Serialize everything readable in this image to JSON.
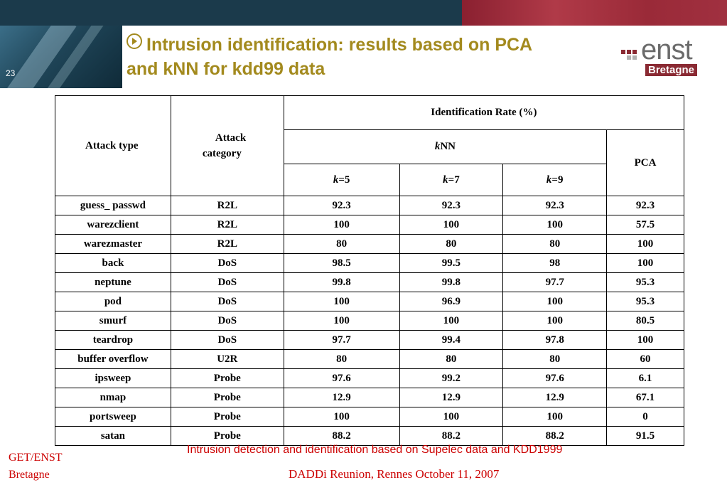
{
  "slide_number": "23",
  "title_line1": "Intrusion identification: results based on PCA",
  "title_line2": "and kNN for kdd99 data",
  "logo": {
    "word": "enst",
    "sub": "Bretagne"
  },
  "table": {
    "header_attack_type": "Attack type",
    "header_attack_category_1": "Attack",
    "header_attack_category_2": "category",
    "header_identification_rate": "Identification Rate (%)",
    "header_knn_italic": "k",
    "header_knn_rest": "NN",
    "header_pca": "PCA",
    "k_values": [
      "=5",
      "=7",
      "=9"
    ],
    "k_label": "k",
    "rows": [
      {
        "type": "guess_ passwd",
        "category": "R2L",
        "k5": "92.3",
        "k7": "92.3",
        "k9": "92.3",
        "pca": "92.3"
      },
      {
        "type": "warezclient",
        "category": "R2L",
        "k5": "100",
        "k7": "100",
        "k9": "100",
        "pca": "57.5"
      },
      {
        "type": "warezmaster",
        "category": "R2L",
        "k5": "80",
        "k7": "80",
        "k9": "80",
        "pca": "100"
      },
      {
        "type": "back",
        "category": "DoS",
        "k5": "98.5",
        "k7": "99.5",
        "k9": "98",
        "pca": "100"
      },
      {
        "type": "neptune",
        "category": "DoS",
        "k5": "99.8",
        "k7": "99.8",
        "k9": "97.7",
        "pca": "95.3"
      },
      {
        "type": "pod",
        "category": "DoS",
        "k5": "100",
        "k7": "96.9",
        "k9": "100",
        "pca": "95.3"
      },
      {
        "type": "smurf",
        "category": "DoS",
        "k5": "100",
        "k7": "100",
        "k9": "100",
        "pca": "80.5"
      },
      {
        "type": "teardrop",
        "category": "DoS",
        "k5": "97.7",
        "k7": "99.4",
        "k9": "97.8",
        "pca": "100"
      },
      {
        "type": "buffer overflow",
        "category": "U2R",
        "k5": "80",
        "k7": "80",
        "k9": "80",
        "pca": "60"
      },
      {
        "type": "ipsweep",
        "category": "Probe",
        "k5": "97.6",
        "k7": "99.2",
        "k9": "97.6",
        "pca": "6.1"
      },
      {
        "type": "nmap",
        "category": "Probe",
        "k5": "12.9",
        "k7": "12.9",
        "k9": "12.9",
        "pca": "67.1"
      },
      {
        "type": "portsweep",
        "category": "Probe",
        "k5": "100",
        "k7": "100",
        "k9": "100",
        "pca": "0"
      },
      {
        "type": "satan",
        "category": "Probe",
        "k5": "88.2",
        "k7": "88.2",
        "k9": "88.2",
        "pca": "91.5"
      }
    ]
  },
  "footnote": "Intrusion detection and identification based on Supelec data and KDD1999",
  "footer_left_line1": "GET/ENST",
  "footer_left_line2": "Bretagne",
  "footer_center": "DADDi  Reunion, Rennes October 11, 2007",
  "colors": {
    "title": "#a38a1e",
    "footer": "#cc0000",
    "topbar": "#1b3a4b",
    "accent": "#8a2030"
  }
}
